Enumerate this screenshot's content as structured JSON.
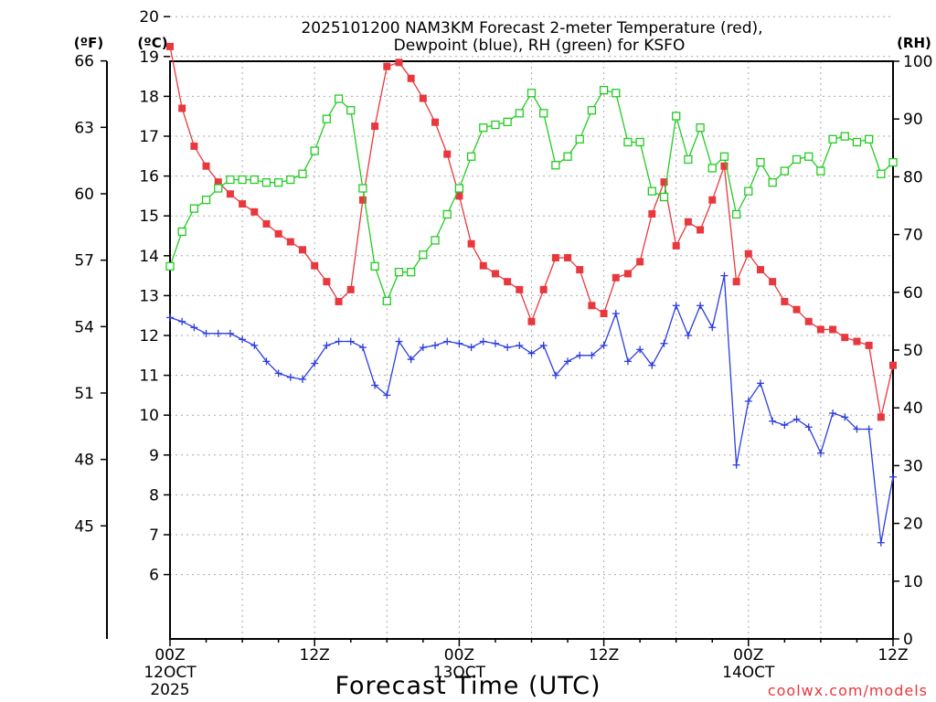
{
  "chart_data": {
    "type": "line",
    "title_line1": "2025101200 NAM3KM Forecast 2-meter Temperature (red),",
    "title_line2": "Dewpoint (blue), RH (green) for KSFO",
    "xlabel": "Forecast Time (UTC)",
    "credit": "coolwx.com/models",
    "unit_labels": {
      "fahrenheit": "(ºF)",
      "celsius": "(ºC)",
      "rh": "(RH)"
    },
    "x_range_hours": [
      0,
      60
    ],
    "y_left_celsius_range": [
      5.8,
      20.3
    ],
    "y_right_rh_range": [
      0,
      100
    ],
    "celsius_ticks": [
      6,
      7,
      8,
      9,
      10,
      11,
      12,
      13,
      14,
      15,
      16,
      17,
      18,
      19,
      20
    ],
    "fahrenheit_ticks": [
      45,
      48,
      51,
      54,
      57,
      60,
      63,
      66
    ],
    "rh_ticks": [
      0,
      10,
      20,
      30,
      40,
      50,
      60,
      70,
      80,
      90,
      100
    ],
    "x_ticks": [
      {
        "hour": 0,
        "label": "00Z",
        "sub": "12OCT",
        "year": "2025"
      },
      {
        "hour": 12,
        "label": "12Z",
        "sub": "",
        "year": ""
      },
      {
        "hour": 24,
        "label": "00Z",
        "sub": "13OCT",
        "year": ""
      },
      {
        "hour": 36,
        "label": "12Z",
        "sub": "",
        "year": ""
      },
      {
        "hour": 48,
        "label": "00Z",
        "sub": "14OCT",
        "year": ""
      },
      {
        "hour": 60,
        "label": "12Z",
        "sub": "",
        "year": ""
      }
    ],
    "grid": true,
    "series": [
      {
        "name": "Temperature",
        "unit": "C",
        "color": "#e8383d",
        "marker": "filled-square",
        "values": [
          19.25,
          17.7,
          16.75,
          16.25,
          15.85,
          15.55,
          15.3,
          15.1,
          14.8,
          14.55,
          14.35,
          14.15,
          13.75,
          13.35,
          12.85,
          13.15,
          15.4,
          17.25,
          18.75,
          18.85,
          18.45,
          17.95,
          17.35,
          16.55,
          15.5,
          14.3,
          13.75,
          13.55,
          13.35,
          13.15,
          12.35,
          13.15,
          13.95,
          13.95,
          13.65,
          12.75,
          12.55,
          13.45,
          13.55,
          13.85,
          15.05,
          15.85,
          14.25,
          14.85,
          14.65,
          15.4,
          16.25,
          13.35,
          14.05,
          13.65,
          13.35,
          12.85,
          12.65,
          12.35,
          12.15,
          12.15,
          11.95,
          11.85,
          11.75,
          9.95,
          11.25
        ]
      },
      {
        "name": "Dewpoint",
        "unit": "C",
        "color": "#2c3ee0",
        "marker": "plus",
        "values": [
          12.45,
          12.35,
          12.2,
          12.05,
          12.05,
          12.05,
          11.9,
          11.75,
          11.35,
          11.05,
          10.95,
          10.9,
          11.3,
          11.75,
          11.85,
          11.85,
          11.7,
          10.75,
          10.5,
          11.85,
          11.4,
          11.7,
          11.75,
          11.85,
          11.8,
          11.7,
          11.85,
          11.8,
          11.7,
          11.75,
          11.55,
          11.75,
          11.0,
          11.35,
          11.5,
          11.5,
          11.75,
          12.55,
          11.35,
          11.65,
          11.25,
          11.8,
          12.75,
          12.0,
          12.75,
          12.2,
          13.5,
          8.75,
          10.35,
          10.8,
          9.85,
          9.75,
          9.9,
          9.7,
          9.05,
          10.05,
          9.95,
          9.65,
          9.65,
          6.8,
          8.45
        ]
      },
      {
        "name": "RH",
        "unit": "%",
        "color": "#22cc22",
        "marker": "open-square",
        "values": [
          64.5,
          70.5,
          74.5,
          76.0,
          78.0,
          79.5,
          79.5,
          79.5,
          79.0,
          79.0,
          79.5,
          80.5,
          84.5,
          90.0,
          93.5,
          91.5,
          78.0,
          64.5,
          58.5,
          63.5,
          63.5,
          66.5,
          69.0,
          73.5,
          78.0,
          83.5,
          88.5,
          89.0,
          89.5,
          91.0,
          94.5,
          91.0,
          82.0,
          83.5,
          86.5,
          91.5,
          95.0,
          94.5,
          86.0,
          86.0,
          77.5,
          76.5,
          90.5,
          83.0,
          88.5,
          81.5,
          83.5,
          73.5,
          77.5,
          82.5,
          79.0,
          81.0,
          83.0,
          83.5,
          81.0,
          86.5,
          87.0,
          86.0,
          86.5,
          80.5,
          82.5
        ]
      }
    ]
  }
}
